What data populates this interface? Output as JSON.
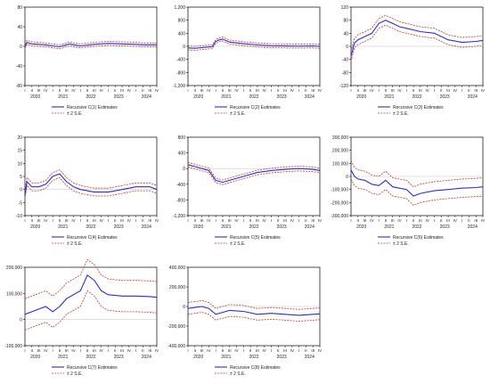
{
  "chart_data": [
    {
      "type": "line",
      "ylim": [
        -80,
        80
      ],
      "yticks": [
        -80,
        -40,
        0,
        40,
        80
      ],
      "ytick_labels": [
        "-80",
        "-40",
        "0",
        "40",
        "80"
      ],
      "quarter_labels": [
        "I",
        "II",
        "III",
        "IV"
      ],
      "years": [
        "2020",
        "2021",
        "2022",
        "2023",
        "2024"
      ],
      "legend": [
        "Recursive C(1) Estimates",
        "± 2 S.E."
      ],
      "center": [
        [
          0,
          0
        ],
        [
          0.3,
          8
        ],
        [
          1,
          5
        ],
        [
          2,
          4
        ],
        [
          3,
          3
        ],
        [
          4,
          1
        ],
        [
          5,
          -1
        ],
        [
          6,
          3
        ],
        [
          6.5,
          5
        ],
        [
          7,
          3
        ],
        [
          8,
          1
        ],
        [
          10,
          4
        ],
        [
          12,
          6
        ],
        [
          14,
          5
        ],
        [
          16,
          4
        ],
        [
          17,
          3
        ],
        [
          19,
          3
        ]
      ],
      "band": 4
    },
    {
      "type": "line",
      "ylim": [
        -1200,
        1200
      ],
      "yticks": [
        -1200,
        -800,
        -400,
        0,
        400,
        800,
        1200
      ],
      "ytick_labels": [
        "-1,200",
        "-800",
        "-400",
        "0",
        "400",
        "800",
        "1,200"
      ],
      "quarter_labels": [
        "I",
        "II",
        "III",
        "IV"
      ],
      "years": [
        "2020",
        "2021",
        "2022",
        "2023",
        "2024"
      ],
      "legend": [
        "Recursive C(2) Estimates",
        "± 2 S.E."
      ],
      "center": [
        [
          0,
          -50
        ],
        [
          1,
          -60
        ],
        [
          2,
          -40
        ],
        [
          3,
          -20
        ],
        [
          3.5,
          -10
        ],
        [
          4,
          150
        ],
        [
          4.5,
          200
        ],
        [
          5,
          220
        ],
        [
          6,
          130
        ],
        [
          8,
          80
        ],
        [
          10,
          40
        ],
        [
          12,
          20
        ],
        [
          14,
          10
        ],
        [
          16,
          5
        ],
        [
          18,
          10
        ],
        [
          19,
          0
        ]
      ],
      "band": 60
    },
    {
      "type": "line",
      "ylim": [
        -120,
        120
      ],
      "yticks": [
        -120,
        -80,
        -40,
        0,
        40,
        80,
        120
      ],
      "ytick_labels": [
        "-120",
        "-80",
        "-40",
        "0",
        "40",
        "80",
        "120"
      ],
      "quarter_labels": [
        "I",
        "II",
        "III",
        "IV"
      ],
      "years": [
        "2020",
        "2021",
        "2022",
        "2023",
        "2024"
      ],
      "legend": [
        "Recursive C(3) Estimates",
        "± 2 S.E."
      ],
      "center": [
        [
          0,
          -30
        ],
        [
          0.5,
          10
        ],
        [
          1,
          20
        ],
        [
          2,
          30
        ],
        [
          3,
          40
        ],
        [
          4,
          70
        ],
        [
          5,
          80
        ],
        [
          6,
          70
        ],
        [
          7,
          60
        ],
        [
          8,
          55
        ],
        [
          10,
          45
        ],
        [
          12,
          40
        ],
        [
          14,
          20
        ],
        [
          16,
          12
        ],
        [
          18,
          15
        ],
        [
          19,
          18
        ]
      ],
      "band": 15
    },
    {
      "type": "line",
      "ylim": [
        -10,
        20
      ],
      "yticks": [
        -10,
        -5,
        0,
        5,
        10,
        15,
        20
      ],
      "ytick_labels": [
        "-10",
        "-5",
        "0",
        "5",
        "10",
        "15",
        "20"
      ],
      "quarter_labels": [
        "I",
        "II",
        "III",
        "IV"
      ],
      "years": [
        "2020",
        "2021",
        "2022",
        "2023",
        "2024"
      ],
      "legend": [
        "Recursive C(4) Estimates",
        "± 2 S.E."
      ],
      "center": [
        [
          0,
          -2
        ],
        [
          0.3,
          3
        ],
        [
          1,
          1
        ],
        [
          2,
          1
        ],
        [
          3,
          2
        ],
        [
          4,
          5
        ],
        [
          5,
          6
        ],
        [
          6,
          3
        ],
        [
          7,
          1
        ],
        [
          8,
          0
        ],
        [
          10,
          -1
        ],
        [
          12,
          -1
        ],
        [
          14,
          0
        ],
        [
          16,
          1
        ],
        [
          18,
          1
        ],
        [
          19,
          0
        ]
      ],
      "band": 1.5
    },
    {
      "type": "line",
      "ylim": [
        -1200,
        800
      ],
      "yticks": [
        -1200,
        -800,
        -400,
        0,
        400,
        800
      ],
      "ytick_labels": [
        "-1,200",
        "-800",
        "-400",
        "0",
        "400",
        "800"
      ],
      "quarter_labels": [
        "I",
        "II",
        "III",
        "IV"
      ],
      "years": [
        "2020",
        "2021",
        "2022",
        "2023",
        "2024"
      ],
      "legend": [
        "Recursive C(5) Estimates",
        "± 2 S.E."
      ],
      "center": [
        [
          0,
          100
        ],
        [
          1,
          50
        ],
        [
          2,
          0
        ],
        [
          3,
          -50
        ],
        [
          4,
          -300
        ],
        [
          5,
          -350
        ],
        [
          6,
          -300
        ],
        [
          8,
          -200
        ],
        [
          10,
          -100
        ],
        [
          12,
          -50
        ],
        [
          14,
          -20
        ],
        [
          16,
          0
        ],
        [
          18,
          -20
        ],
        [
          19,
          -50
        ]
      ],
      "band": 60
    },
    {
      "type": "line",
      "ylim": [
        -300000,
        300000
      ],
      "yticks": [
        -300000,
        -200000,
        -100000,
        0,
        100000,
        200000,
        300000
      ],
      "ytick_labels": [
        "-300,000",
        "-200,000",
        "-100,000",
        "0",
        "100,000",
        "200,000",
        "300,000"
      ],
      "quarter_labels": [
        "I",
        "II",
        "III",
        "IV"
      ],
      "years": [
        "2020",
        "2021",
        "2022",
        "2023",
        "2024"
      ],
      "legend": [
        "Recursive C(6) Estimates",
        "± 2 S.E."
      ],
      "center": [
        [
          0,
          50000
        ],
        [
          0.5,
          0
        ],
        [
          1,
          -20000
        ],
        [
          2,
          -30000
        ],
        [
          3,
          -60000
        ],
        [
          4,
          -70000
        ],
        [
          5,
          -30000
        ],
        [
          6,
          -80000
        ],
        [
          8,
          -100000
        ],
        [
          9,
          -150000
        ],
        [
          10,
          -130000
        ],
        [
          12,
          -110000
        ],
        [
          14,
          -100000
        ],
        [
          16,
          -90000
        ],
        [
          18,
          -85000
        ],
        [
          19,
          -80000
        ]
      ],
      "band": 70000
    },
    {
      "type": "line",
      "ylim": [
        -100000,
        200000
      ],
      "yticks": [
        -100000,
        0,
        100000,
        200000
      ],
      "ytick_labels": [
        "-100,000",
        "0",
        "100,000",
        "200,000"
      ],
      "quarter_labels": [
        "I",
        "II",
        "III",
        "IV"
      ],
      "years": [
        "2020",
        "2021",
        "2022",
        "2023",
        "2024"
      ],
      "legend": [
        "Recursive C(7) Estimates",
        "± 2 S.E."
      ],
      "center": [
        [
          0,
          20000
        ],
        [
          1,
          30000
        ],
        [
          2,
          40000
        ],
        [
          3,
          50000
        ],
        [
          4,
          30000
        ],
        [
          5,
          50000
        ],
        [
          6,
          80000
        ],
        [
          8,
          110000
        ],
        [
          9,
          170000
        ],
        [
          10,
          150000
        ],
        [
          11,
          110000
        ],
        [
          12,
          95000
        ],
        [
          14,
          90000
        ],
        [
          16,
          90000
        ],
        [
          18,
          88000
        ],
        [
          19,
          85000
        ]
      ],
      "band": 60000
    },
    {
      "type": "line",
      "ylim": [
        -400000,
        400000
      ],
      "yticks": [
        -400000,
        -200000,
        0,
        200000,
        400000
      ],
      "ytick_labels": [
        "-400,000",
        "-200,000",
        "0",
        "200,000",
        "400,000"
      ],
      "quarter_labels": [
        "I",
        "II",
        "III",
        "IV"
      ],
      "years": [
        "2020",
        "2021",
        "2022",
        "2023",
        "2024"
      ],
      "legend": [
        "Recursive C(8) Estimates",
        "± 2 S.E."
      ],
      "center": [
        [
          0,
          -20000
        ],
        [
          1,
          -10000
        ],
        [
          2,
          0
        ],
        [
          3,
          -20000
        ],
        [
          4,
          -80000
        ],
        [
          5,
          -60000
        ],
        [
          6,
          -40000
        ],
        [
          8,
          -50000
        ],
        [
          10,
          -80000
        ],
        [
          12,
          -70000
        ],
        [
          14,
          -80000
        ],
        [
          16,
          -90000
        ],
        [
          18,
          -80000
        ],
        [
          19,
          -75000
        ]
      ],
      "band": 60000
    }
  ],
  "colors": {
    "estimate": "#2b2bd6",
    "band": "#c0392b",
    "axis": "#000000",
    "text": "#222222"
  }
}
